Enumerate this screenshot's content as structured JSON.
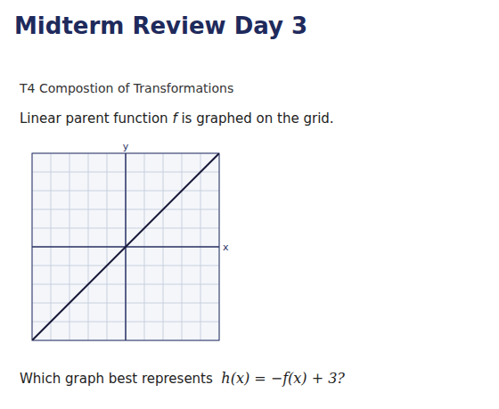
{
  "chart_data": {
    "type": "line",
    "title": "Midterm Review Day 3",
    "subtitle": "T4 Compostion of Transformations",
    "description": [
      "Linear parent function ",
      "f",
      " is graphed on the grid."
    ],
    "question": [
      "Which graph best represents  ",
      "h(x) = −f(x) + 3?"
    ],
    "x_label": "x",
    "y_label": "y",
    "x": [
      -10,
      10
    ],
    "series": [
      {
        "color": "#1a1a3a",
        "values": [
          -10,
          10
        ]
      }
    ],
    "xlim": [
      -10,
      10
    ],
    "ylim": [
      -10,
      10
    ],
    "xticks": [
      -10,
      -8,
      -6,
      -4,
      -2,
      0,
      2,
      4,
      6,
      8,
      10
    ],
    "yticks": [
      -10,
      -8,
      -6,
      -4,
      -2,
      0,
      2,
      4,
      6,
      8,
      10
    ],
    "grid": true,
    "tick_labels": false
  }
}
